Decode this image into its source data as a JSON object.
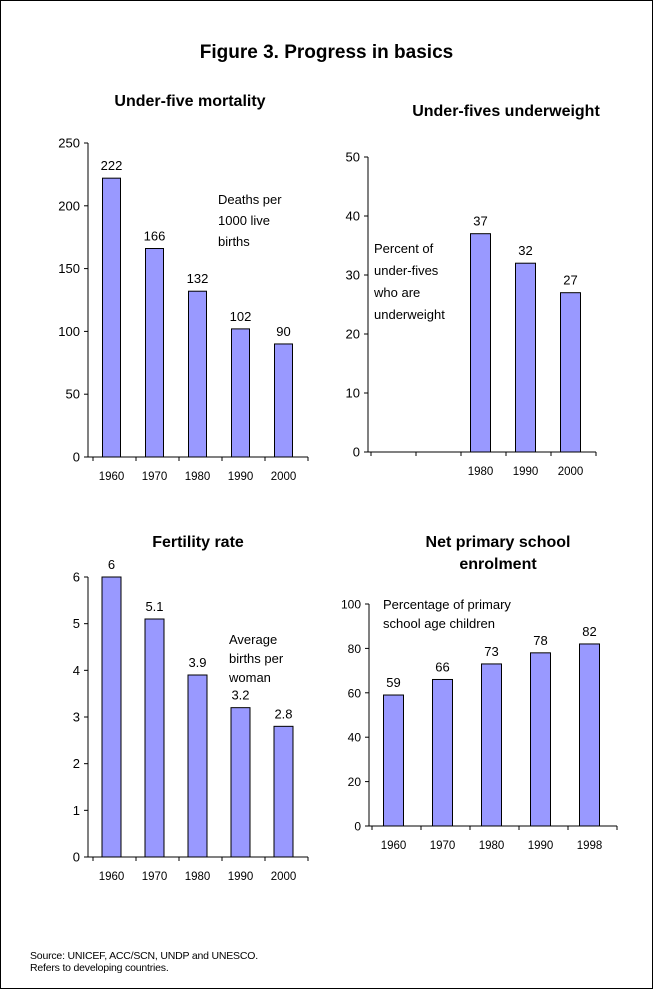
{
  "figure": {
    "title": "Figure 3. Progress in basics",
    "source_lines": [
      "Source: UNICEF, ACC/SCN, UNDP and UNESCO.",
      "Refers to developing countries."
    ]
  },
  "colors": {
    "bar_fill": "#9999ff",
    "bar_stroke": "#000000"
  },
  "chart_data": [
    {
      "type": "bar",
      "title_lines": [
        "Under-five mortality"
      ],
      "annotation_lines": [
        "Deaths per",
        "1000 live",
        "births"
      ],
      "categories": [
        "1960",
        "1970",
        "1980",
        "1990",
        "2000"
      ],
      "values": [
        222,
        166,
        132,
        102,
        90
      ],
      "value_labels": [
        "222",
        "166",
        "132",
        "102",
        "90"
      ],
      "yticks": [
        "0",
        "50",
        "100",
        "150",
        "200",
        "250"
      ],
      "ylim": [
        0,
        250
      ]
    },
    {
      "type": "bar",
      "title_lines": [
        "Under-fives underweight"
      ],
      "annotation_lines": [
        "Percent of",
        "under-fives",
        "who are",
        "underweight"
      ],
      "categories": [
        "",
        "",
        "1980",
        "1990",
        "2000"
      ],
      "values": [
        null,
        null,
        37,
        32,
        27
      ],
      "value_labels": [
        "",
        "",
        "37",
        "32",
        "27"
      ],
      "yticks": [
        "0",
        "10",
        "20",
        "30",
        "40",
        "50"
      ],
      "ylim": [
        0,
        50
      ]
    },
    {
      "type": "bar",
      "title_lines": [
        "Fertility rate"
      ],
      "annotation_lines": [
        "Average",
        "births per",
        "woman"
      ],
      "categories": [
        "1960",
        "1970",
        "1980",
        "1990",
        "2000"
      ],
      "values": [
        6,
        5.1,
        3.9,
        3.2,
        2.8
      ],
      "value_labels": [
        "6",
        "5.1",
        "3.9",
        "3.2",
        "2.8"
      ],
      "yticks": [
        "0",
        "1",
        "2",
        "3",
        "4",
        "5",
        "6"
      ],
      "ylim": [
        0,
        6
      ]
    },
    {
      "type": "bar",
      "title_lines": [
        "Net primary school",
        "enrolment"
      ],
      "annotation_lines": [
        "Percentage of primary",
        "school age children"
      ],
      "categories": [
        "1960",
        "1970",
        "1980",
        "1990",
        "1998"
      ],
      "values": [
        59,
        66,
        73,
        78,
        82
      ],
      "value_labels": [
        "59",
        "66",
        "73",
        "78",
        "82"
      ],
      "yticks": [
        "0",
        "20",
        "40",
        "60",
        "80",
        "100"
      ],
      "ylim": [
        0,
        100
      ]
    }
  ]
}
